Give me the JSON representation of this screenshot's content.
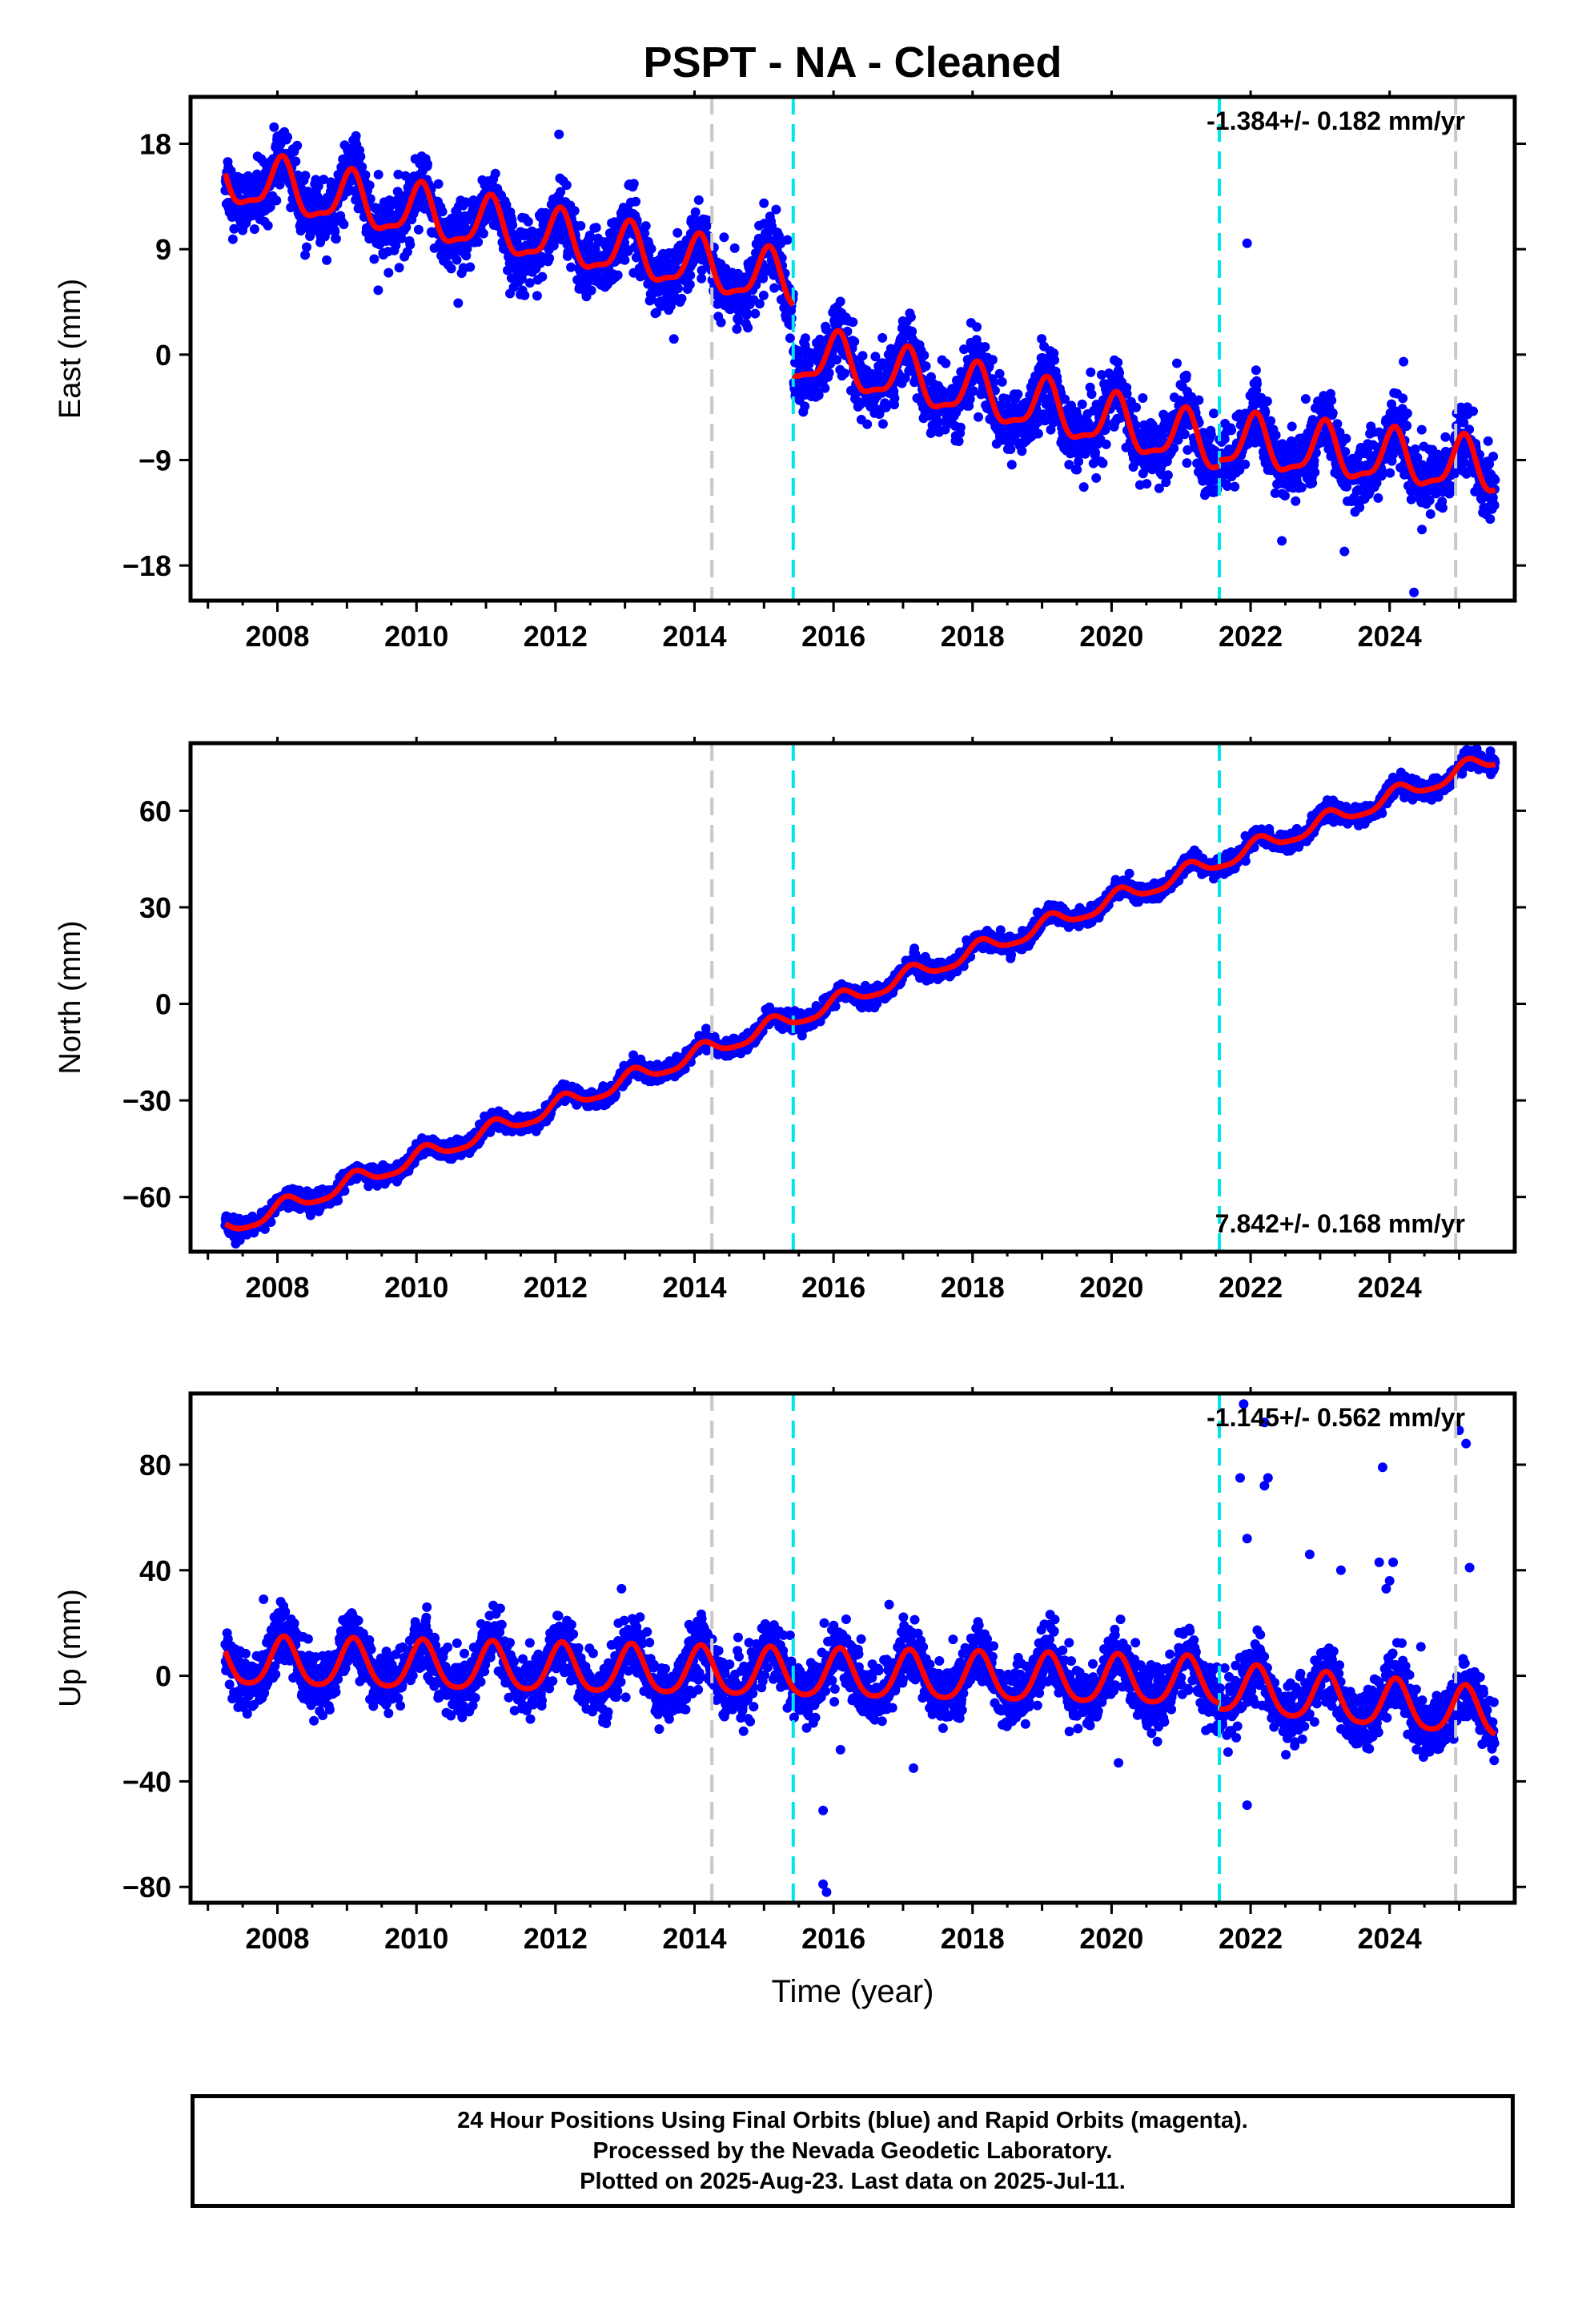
{
  "page_title": "PSPT  - NA - Cleaned",
  "colors": {
    "final_orbits": "#0000ff",
    "rapid_orbits": "#ff00ff",
    "model_fit": "#ff0000",
    "equipment_change": "#c8c8c8",
    "earthquake_offset": "#00e5ee",
    "frame": "#000000"
  },
  "chart_data": [
    {
      "type": "scatter",
      "name": "east",
      "ylabel": "East (mm)",
      "xlabel": "",
      "xlim": [
        2006.75,
        2025.8
      ],
      "ylim": [
        -21,
        22
      ],
      "x_ticks": [
        2008,
        2010,
        2012,
        2014,
        2016,
        2018,
        2020,
        2022,
        2024
      ],
      "y_ticks": [
        18,
        9,
        0,
        -9,
        -18
      ],
      "velocity_label": "-1.384+/- 0.182 mm/yr",
      "velocity_label_position": "top-right",
      "equipment_change_lines": [
        2014.25,
        2024.95
      ],
      "earthquake_lines": [
        2015.42,
        2021.55
      ],
      "model": {
        "start": 2007.25,
        "end": 2025.52,
        "segments": [
          {
            "start": 2007.25,
            "end": 2015.42,
            "value_at_start": 15.0,
            "rate_mm_per_yr": -1.1
          },
          {
            "start": 2015.42,
            "end": 2021.55,
            "value_at_start": 0.0,
            "rate_mm_per_yr": -1.3
          },
          {
            "start": 2021.55,
            "end": 2025.52,
            "value_at_start": -7.5,
            "rate_mm_per_yr": -0.6
          }
        ],
        "annual_amplitude": 2.2,
        "annual_phase": 1.2,
        "semiannual_amplitude": 0.7,
        "semiannual_phase": 0.5,
        "scatter_sigma": 1.4
      },
      "outliers": [
        [
          2021.95,
          9.5
        ],
        [
          2024.2,
          -0.6
        ],
        [
          2024.35,
          -20.3
        ],
        [
          2022.45,
          -15.9
        ],
        [
          2014.1,
          6.5
        ],
        [
          2012.05,
          18.8
        ],
        [
          2009.45,
          5.5
        ],
        [
          2019.6,
          -11.3
        ],
        [
          2023.35,
          -16.8
        ],
        [
          2010.6,
          4.4
        ]
      ]
    },
    {
      "type": "scatter",
      "name": "north",
      "ylabel": "North (mm)",
      "xlabel": "",
      "xlim": [
        2006.75,
        2025.8
      ],
      "ylim": [
        -77,
        81
      ],
      "x_ticks": [
        2008,
        2010,
        2012,
        2014,
        2016,
        2018,
        2020,
        2022,
        2024
      ],
      "y_ticks": [
        60,
        30,
        0,
        -30,
        -60
      ],
      "velocity_label": "7.842+/- 0.168 mm/yr",
      "velocity_label_position": "bottom-right",
      "equipment_change_lines": [
        2014.25,
        2024.95
      ],
      "earthquake_lines": [
        2015.42,
        2021.55
      ],
      "model": {
        "start": 2007.25,
        "end": 2025.52,
        "segments": [
          {
            "start": 2007.25,
            "end": 2025.52,
            "value_at_start": -70.0,
            "rate_mm_per_yr": 8.0
          }
        ],
        "annual_amplitude": 2.6,
        "annual_phase": 0.8,
        "semiannual_amplitude": 0.6,
        "semiannual_phase": 0.3,
        "scatter_sigma": 1.3
      },
      "outliers": [
        [
          2007.4,
          -74.5
        ],
        [
          2025.45,
          78.5
        ]
      ]
    },
    {
      "type": "scatter",
      "name": "up",
      "ylabel": "Up (mm)",
      "xlabel": "Time (year)",
      "xlim": [
        2006.75,
        2025.8
      ],
      "ylim": [
        -86,
        107
      ],
      "x_ticks": [
        2008,
        2010,
        2012,
        2014,
        2016,
        2018,
        2020,
        2022,
        2024
      ],
      "y_ticks": [
        80,
        40,
        0,
        -40,
        -80
      ],
      "velocity_label": "-1.145+/- 0.562 mm/yr",
      "velocity_label_position": "top-right",
      "equipment_change_lines": [
        2014.25,
        2024.95
      ],
      "earthquake_lines": [
        2015.42,
        2021.55
      ],
      "model": {
        "start": 2007.25,
        "end": 2025.52,
        "segments": [
          {
            "start": 2007.25,
            "end": 2021.55,
            "value_at_start": 5.0,
            "rate_mm_per_yr": -0.55
          },
          {
            "start": 2021.55,
            "end": 2025.52,
            "value_at_start": -5.0,
            "rate_mm_per_yr": -2.5
          }
        ],
        "annual_amplitude": 9.0,
        "annual_phase": 1.0,
        "semiannual_amplitude": 1.5,
        "semiannual_phase": 0.4,
        "scatter_sigma": 5.5
      },
      "outliers": [
        [
          2021.9,
          103
        ],
        [
          2021.85,
          75
        ],
        [
          2022.2,
          96
        ],
        [
          2022.25,
          75
        ],
        [
          2022.2,
          72
        ],
        [
          2021.95,
          52
        ],
        [
          2022.85,
          46
        ],
        [
          2023.3,
          40
        ],
        [
          2023.9,
          79
        ],
        [
          2023.85,
          43
        ],
        [
          2024.05,
          43
        ],
        [
          2024.0,
          36
        ],
        [
          2023.95,
          33
        ],
        [
          2025.0,
          93
        ],
        [
          2025.1,
          88
        ],
        [
          2025.15,
          41
        ],
        [
          2024.45,
          11
        ],
        [
          2012.95,
          33
        ],
        [
          2015.85,
          -51
        ],
        [
          2015.85,
          -79
        ],
        [
          2015.9,
          -82
        ],
        [
          2021.95,
          -49
        ],
        [
          2007.8,
          29
        ],
        [
          2016.8,
          27
        ],
        [
          2017.15,
          -35
        ],
        [
          2016.1,
          -28
        ],
        [
          2020.1,
          -33
        ]
      ]
    }
  ],
  "footer": {
    "line1": "24 Hour Positions Using Final Orbits (blue) and Rapid Orbits (magenta).",
    "line2": "Processed by the Nevada Geodetic Laboratory.",
    "line3": "Plotted on 2025-Aug-23. Last data on 2025-Jul-11."
  }
}
